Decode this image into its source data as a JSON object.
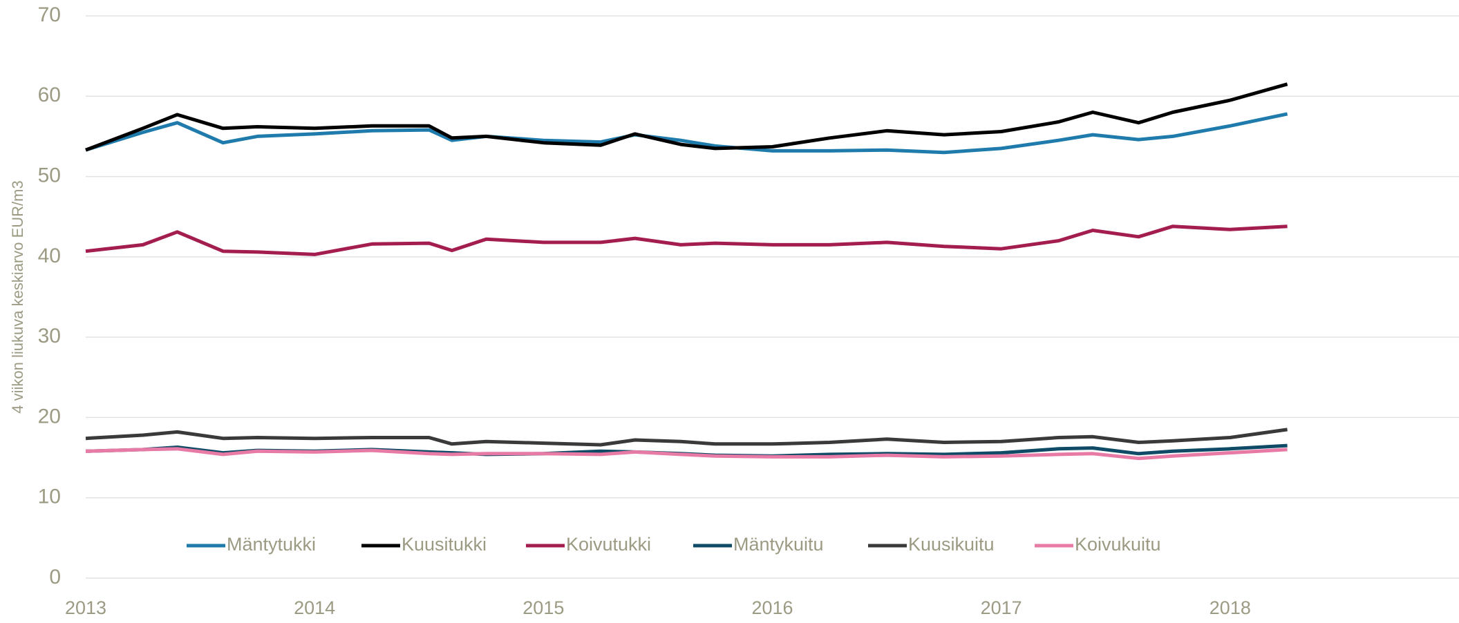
{
  "chart_data": {
    "type": "line",
    "ylabel": "4 viikon liukuva keskiarvo EUR/m3",
    "x": [
      2013.0,
      2013.25,
      2013.4,
      2013.6,
      2013.75,
      2014.0,
      2014.25,
      2014.5,
      2014.6,
      2014.75,
      2015.0,
      2015.25,
      2015.4,
      2015.6,
      2015.75,
      2016.0,
      2016.25,
      2016.5,
      2016.75,
      2017.0,
      2017.25,
      2017.4,
      2017.6,
      2017.75,
      2018.0,
      2018.25
    ],
    "xlim": [
      2013,
      2019
    ],
    "xticks": [
      2013,
      2014,
      2015,
      2016,
      2017,
      2018
    ],
    "ylim": [
      0,
      70
    ],
    "yticks": [
      0,
      10,
      20,
      30,
      40,
      50,
      60,
      70
    ],
    "grid": true,
    "legend": "bottom",
    "series": [
      {
        "name": "Mäntytukki",
        "color": "#1f7bab",
        "values": [
          53.3,
          55.5,
          56.7,
          54.2,
          55,
          55.3,
          55.7,
          55.8,
          54.5,
          55,
          54.5,
          54.3,
          55.2,
          54.5,
          53.8,
          53.2,
          53.2,
          53.3,
          53,
          53.5,
          54.5,
          55.2,
          54.6,
          55,
          56.3,
          57.8
        ]
      },
      {
        "name": "Kuusitukki",
        "color": "#000000",
        "values": [
          53.3,
          56,
          57.7,
          56,
          56.2,
          56,
          56.3,
          56.3,
          54.8,
          55,
          54.2,
          53.9,
          55.3,
          54,
          53.5,
          53.7,
          54.8,
          55.7,
          55.2,
          55.6,
          56.8,
          58,
          56.7,
          58,
          59.5,
          61.5
        ]
      },
      {
        "name": "Koivutukki",
        "color": "#a31d4e",
        "values": [
          40.7,
          41.5,
          43.1,
          40.7,
          40.6,
          40.3,
          41.6,
          41.7,
          40.8,
          42.2,
          41.8,
          41.8,
          42.3,
          41.5,
          41.7,
          41.5,
          41.5,
          41.8,
          41.3,
          41,
          42,
          43.3,
          42.5,
          43.8,
          43.4,
          43.8
        ]
      },
      {
        "name": "Mäntykuitu",
        "color": "#0f4a66",
        "values": [
          15.8,
          16,
          16.3,
          15.6,
          15.9,
          15.8,
          16,
          15.7,
          15.6,
          15.4,
          15.5,
          15.8,
          15.7,
          15.5,
          15.3,
          15.2,
          15.4,
          15.5,
          15.4,
          15.6,
          16.1,
          16.2,
          15.5,
          15.8,
          16.1,
          16.5
        ]
      },
      {
        "name": "Kuusikuitu",
        "color": "#3a3a3a",
        "values": [
          17.4,
          17.8,
          18.2,
          17.4,
          17.5,
          17.4,
          17.5,
          17.5,
          16.7,
          17,
          16.8,
          16.6,
          17.2,
          17,
          16.7,
          16.7,
          16.9,
          17.3,
          16.9,
          17,
          17.5,
          17.6,
          16.9,
          17.1,
          17.5,
          18.5
        ]
      },
      {
        "name": "Koivukuitu",
        "color": "#e87aa6",
        "values": [
          15.8,
          16,
          16.1,
          15.4,
          15.8,
          15.7,
          15.9,
          15.5,
          15.4,
          15.5,
          15.5,
          15.4,
          15.7,
          15.4,
          15.2,
          15.1,
          15.1,
          15.3,
          15.1,
          15.2,
          15.4,
          15.5,
          14.9,
          15.2,
          15.6,
          16
        ]
      }
    ]
  }
}
